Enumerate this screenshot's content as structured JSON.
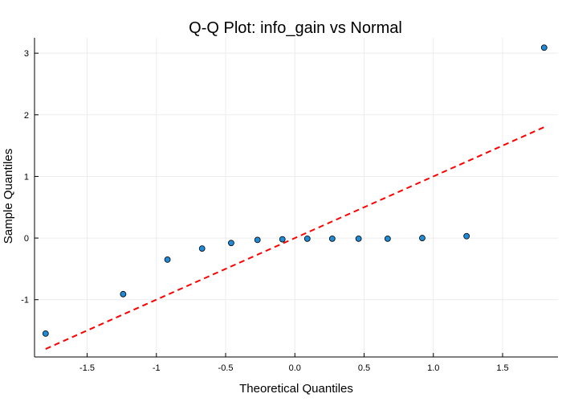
{
  "chart_data": {
    "type": "scatter",
    "title": "Q-Q Plot: info_gain vs Normal",
    "xlabel": "Theoretical Quantiles",
    "ylabel": "Sample Quantiles",
    "xlim": [
      -1.88,
      1.9
    ],
    "ylim": [
      -1.93,
      3.25
    ],
    "x_ticks": [
      -1.5,
      -1.0,
      -0.5,
      0.0,
      0.5,
      1.0,
      1.5
    ],
    "x_tick_labels": [
      "-1.5",
      "-1",
      "-0.5",
      "0.0",
      "0.5",
      "1.0",
      "1.5"
    ],
    "y_ticks": [
      -1,
      0,
      1,
      2,
      3
    ],
    "y_tick_labels": [
      "-1",
      "0",
      "1",
      "2",
      "3"
    ],
    "grid": true,
    "points": [
      {
        "x": -1.8,
        "y": -1.55
      },
      {
        "x": -1.24,
        "y": -0.91
      },
      {
        "x": -0.92,
        "y": -0.35
      },
      {
        "x": -0.67,
        "y": -0.17
      },
      {
        "x": -0.46,
        "y": -0.08
      },
      {
        "x": -0.27,
        "y": -0.03
      },
      {
        "x": -0.09,
        "y": -0.02
      },
      {
        "x": 0.09,
        "y": -0.01
      },
      {
        "x": 0.27,
        "y": -0.01
      },
      {
        "x": 0.46,
        "y": -0.01
      },
      {
        "x": 0.67,
        "y": -0.01
      },
      {
        "x": 0.92,
        "y": 0.0
      },
      {
        "x": 1.24,
        "y": 0.03
      },
      {
        "x": 1.8,
        "y": 3.09
      }
    ],
    "reference_line": {
      "x": [
        -1.8,
        1.8
      ],
      "y": [
        -1.8,
        1.8
      ],
      "style": "dashed"
    },
    "point_color": "#1f8ad6",
    "line_color": "#ff0000"
  }
}
